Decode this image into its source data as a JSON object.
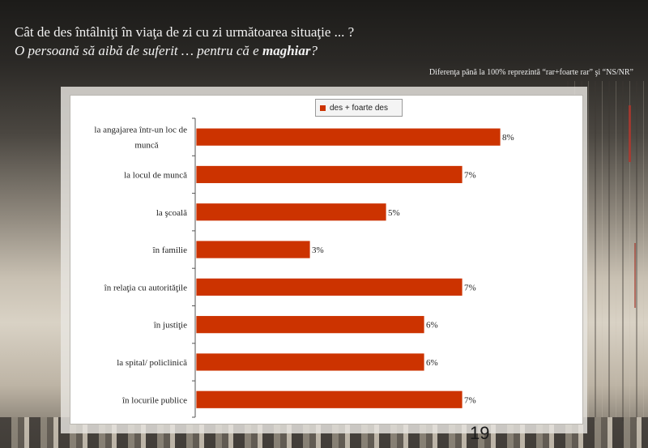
{
  "slide": {
    "title_line1": "Cât de des întâlniţi în viaţa de zi cu zi următoarea situaţie ... ?",
    "title_line2_prefix": "O persoană să aibă de suferit … pentru că e ",
    "title_line2_bold": "maghiar",
    "title_line2_suffix": "?",
    "note": "Diferenţa până la 100% reprezintă  “rar+foarte rar” şi “NS/NR”",
    "page_number": "19"
  },
  "chart_data": {
    "type": "bar",
    "orientation": "horizontal",
    "categories": [
      "la angajarea într-un loc de muncă",
      "la locul de muncă",
      "la şcoală",
      "în familie",
      "în relaţia cu autorităţile",
      "în justiţie",
      "la spital/ policlinică",
      "în locurile publice"
    ],
    "category_lines": [
      [
        "la angajarea într-un loc de",
        "muncă"
      ],
      [
        "la locul de muncă"
      ],
      [
        "la şcoală"
      ],
      [
        "în familie"
      ],
      [
        "în relaţia cu autorităţile"
      ],
      [
        "în justiţie"
      ],
      [
        "la spital/ policlinică"
      ],
      [
        "în locurile publice"
      ]
    ],
    "series": [
      {
        "name": "des + foarte des",
        "values": [
          8,
          7,
          5,
          3,
          7,
          6,
          6,
          7
        ],
        "labels": [
          "8%",
          "7%",
          "5%",
          "3%",
          "7%",
          "6%",
          "6%",
          "7%"
        ],
        "color": "#cc3300"
      }
    ],
    "xlim": [
      0,
      8
    ],
    "legend": "top-center",
    "grid": false
  }
}
